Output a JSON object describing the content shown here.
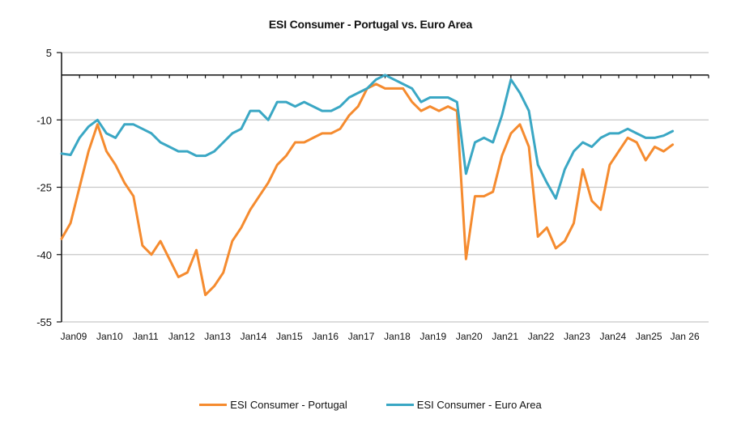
{
  "chart_data": {
    "type": "line",
    "title": "ESI Consumer  -  Portugal vs. Euro Area",
    "xlabel": "",
    "ylabel": "",
    "ylim": [
      -55,
      5
    ],
    "yticks": [
      5,
      -10,
      -25,
      -40,
      -55
    ],
    "x_axis_crosses_at": 0,
    "x_start": "2009-01",
    "x_end": "2027-01",
    "x_step": "quarterly",
    "xtick_labels": [
      "Jan09",
      "Jan10",
      "Jan11",
      "Jan12",
      "Jan13",
      "Jan14",
      "Jan15",
      "Jan16",
      "Jan17",
      "Jan18",
      "Jan19",
      "Jan20",
      "Jan21",
      "Jan22",
      "Jan23",
      "Jan24",
      "Jan25",
      "Jan 26"
    ],
    "grid": true,
    "legend": "bottom",
    "series": [
      {
        "name": "ESI Consumer - Portugal",
        "color": "#F58B2F",
        "values": [
          -36.5,
          -33,
          -25,
          -17,
          -11,
          -17,
          -20,
          -24,
          -27,
          -38,
          -40,
          -37,
          -41,
          -45,
          -44,
          -39,
          -49,
          -47,
          -44,
          -37,
          -34,
          -30,
          -27,
          -24,
          -20,
          -18,
          -15,
          -15,
          -14,
          -13,
          -13,
          -12,
          -9,
          -7,
          -3,
          -2,
          -3,
          -3,
          -3,
          -6,
          -8,
          -7,
          -8,
          -7,
          -8,
          -41,
          -27,
          -27,
          -26,
          -18,
          -13,
          -11,
          -16,
          -36,
          -34,
          -38.6,
          -37,
          -33,
          -21,
          -28,
          -30,
          -20,
          -17,
          -14,
          -15,
          -19,
          -16,
          -17,
          -15.5
        ]
      },
      {
        "name": "ESI Consumer  - Euro Area",
        "color": "#3AA7C4",
        "values": [
          -17.5,
          -17.8,
          -14,
          -11.5,
          -10,
          -13,
          -14,
          -11,
          -11,
          -12,
          -13,
          -15,
          -16,
          -17,
          -17,
          -18,
          -18,
          -17,
          -15,
          -13,
          -12,
          -8,
          -8,
          -10,
          -6,
          -6,
          -7,
          -6,
          -7,
          -8,
          -8,
          -7,
          -5,
          -4,
          -3,
          -1,
          0,
          -1,
          -2,
          -3,
          -6,
          -5,
          -5,
          -5,
          -6,
          -22,
          -15,
          -14,
          -15,
          -9,
          -1,
          -4,
          -8,
          -20,
          -24,
          -27.5,
          -21,
          -17,
          -15,
          -16,
          -14,
          -13,
          -13,
          -12,
          -13,
          -14,
          -14,
          -13.5,
          -12.5
        ]
      }
    ]
  },
  "legend": {
    "items": [
      {
        "label": "ESI Consumer - Portugal",
        "color": "#F58B2F"
      },
      {
        "label": "ESI Consumer  - Euro Area",
        "color": "#3AA7C4"
      }
    ]
  }
}
